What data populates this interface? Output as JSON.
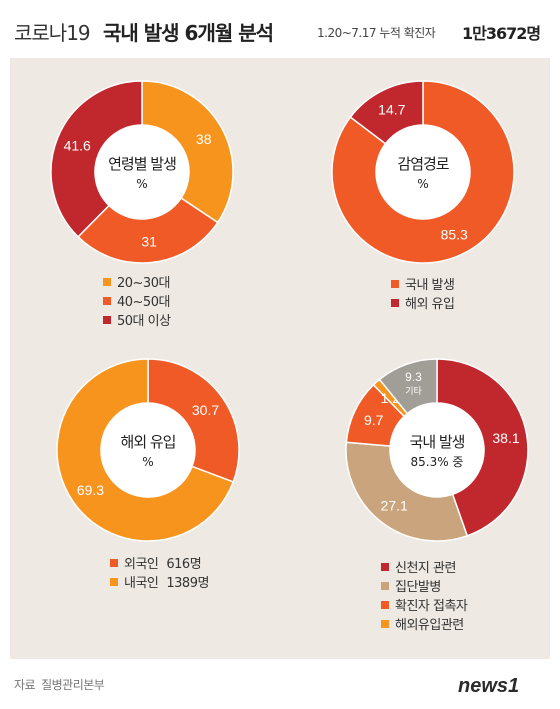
{
  "header": {
    "title_prefix": "코로나19",
    "title_main": "국내 발생 6개월 분석",
    "period": "1.20~7.17 누적 확진자",
    "total": "1만3672명"
  },
  "colors": {
    "panel_bg": "#eeeae3",
    "dark_red": "#c0282e",
    "orange_red": "#ef5a26",
    "orange": "#f7941d",
    "tan": "#c9a47c",
    "gray": "#a19d97"
  },
  "chart_data": [
    {
      "type": "pie",
      "center_label": "연령별 발생",
      "center_unit": "%",
      "slices": [
        {
          "label": "20~30대",
          "value": 38,
          "value_label": "38",
          "color": "#f7941d"
        },
        {
          "label": "40~50대",
          "value": 31,
          "value_label": "31",
          "color": "#ef5a26"
        },
        {
          "label": "50대 이상",
          "value": 41.6,
          "value_label": "41.6",
          "color": "#c0282e"
        }
      ]
    },
    {
      "type": "pie",
      "center_label": "감염경로",
      "center_unit": "%",
      "slices": [
        {
          "label": "국내 발생",
          "value": 85.3,
          "value_label": "85.3",
          "color": "#ef5a26"
        },
        {
          "label": "해외 유입",
          "value": 14.7,
          "value_label": "14.7",
          "color": "#c0282e"
        }
      ]
    },
    {
      "type": "pie",
      "center_label": "해외 유입",
      "center_unit": "%",
      "slices": [
        {
          "label": "외국인",
          "value": 30.7,
          "value_label": "30.7",
          "extra": "616명",
          "color": "#ef5a26"
        },
        {
          "label": "내국인",
          "value": 69.3,
          "value_label": "69.3",
          "extra": "1389명",
          "color": "#f7941d"
        }
      ]
    },
    {
      "type": "pie",
      "center_label": "국내 발생",
      "center_unit": "85.3% 중",
      "slices": [
        {
          "label": "신천지 관련",
          "value": 38.1,
          "value_label": "38.1",
          "color": "#c0282e"
        },
        {
          "label": "집단발병",
          "value": 27.1,
          "value_label": "27.1",
          "color": "#c9a47c"
        },
        {
          "label": "확진자 접촉자",
          "value": 9.7,
          "value_label": "9.7",
          "color": "#ef5a26"
        },
        {
          "label": "해외유입관련",
          "value": 1.2,
          "value_label": "1.2",
          "color": "#f7941d"
        },
        {
          "label": "기타",
          "value": 9.3,
          "value_label": "9.3",
          "color": "#a19d97",
          "in_legend": false
        }
      ]
    }
  ],
  "footer": {
    "source_label": "자료",
    "source_name": "질병관리본부",
    "logo_text": "news1"
  }
}
